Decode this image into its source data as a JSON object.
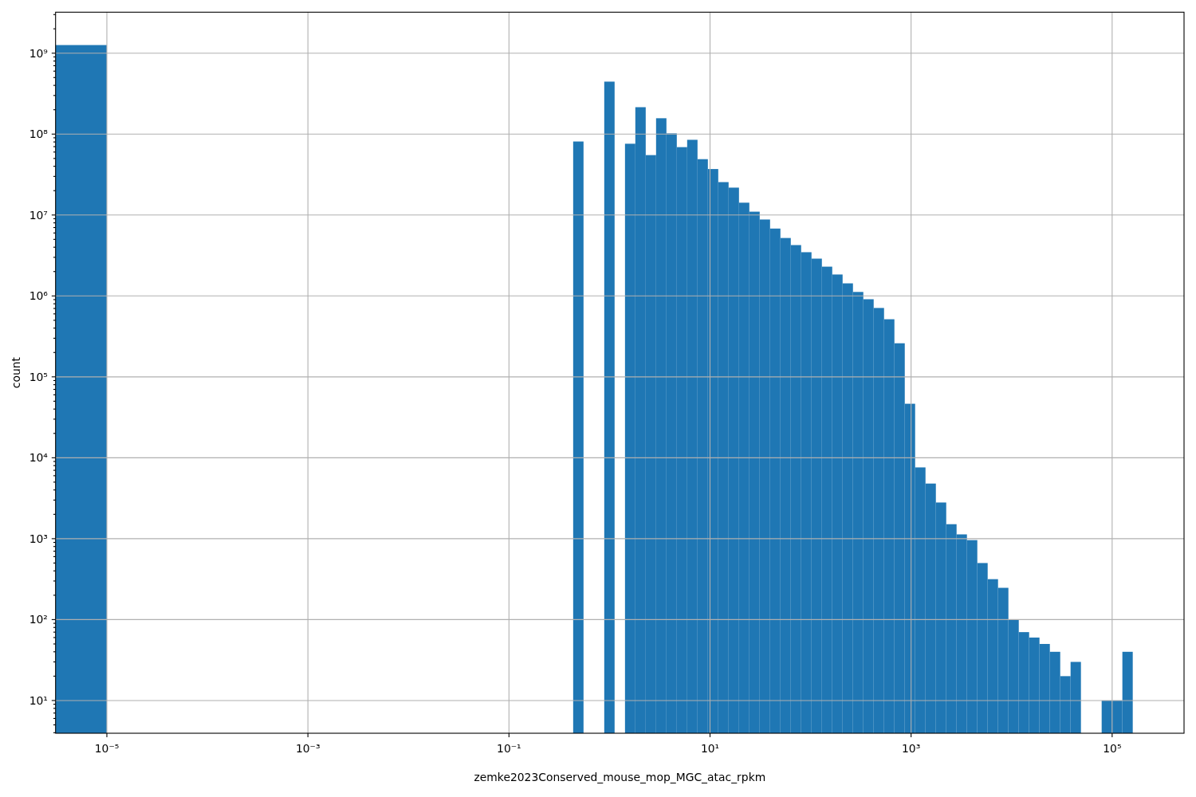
{
  "chart_data": {
    "type": "histogram",
    "xlabel": "zemke2023Conserved_mouse_mop_MGC_atac_rpkm",
    "ylabel": "count",
    "color": "#1f77b4",
    "log": "xy",
    "grid": true,
    "bins": [
      3.09e-06,
      1e-05,
      0.4351,
      0.5516,
      0.8867,
      1.124,
      1.426,
      1.807,
      2.292,
      2.906,
      3.684,
      4.671,
      5.922,
      7.508,
      9.519,
      12.07,
      15.3,
      19.41,
      24.6,
      31.19,
      39.55,
      50.14,
      63.57,
      80.6,
      102.2,
      129.6,
      164.3,
      208.3,
      264.1,
      334.8,
      424.5,
      538.3,
      682.4,
      865.3,
      1097,
      1391,
      1764,
      2236,
      2835,
      3594,
      4557,
      5778,
      7326,
      9290,
      11780,
      14930,
      18930,
      24010,
      30440,
      38590,
      48930,
      78660,
      99720,
      126400,
      160300
    ],
    "values": [
      1260000000.0,
      null,
      81000000.0,
      null,
      445000000.0,
      null,
      76000000.0,
      215000000.0,
      55000000.0,
      157000000.0,
      102000000.0,
      69000000.0,
      85000000.0,
      49000000.0,
      37000000.0,
      25500000.0,
      21800000.0,
      14200000.0,
      11000000.0,
      8800000.0,
      6800000.0,
      5200000.0,
      4250000.0,
      3470000.0,
      2890000.0,
      2300000.0,
      1840000.0,
      1430000.0,
      1120000.0,
      910000.0,
      710000.0,
      515000.0,
      260000.0,
      46500.0,
      7600,
      4800,
      2800,
      1510,
      1130,
      960,
      500,
      316,
      247,
      100,
      70,
      60,
      50,
      40,
      20,
      30,
      null,
      10,
      10,
      40
    ],
    "xlim": [
      3.09e-06,
      519000.0
    ],
    "ylim": [
      3.94,
      3210000000.0
    ],
    "xticks": [
      {
        "value": 1e-05,
        "label": "10⁻⁵"
      },
      {
        "value": 0.001,
        "label": "10⁻³"
      },
      {
        "value": 0.1,
        "label": "10⁻¹"
      },
      {
        "value": 10,
        "label": "10¹"
      },
      {
        "value": 1000,
        "label": "10³"
      },
      {
        "value": 100000,
        "label": "10⁵"
      }
    ],
    "yticks": [
      {
        "value": 4,
        "label": null
      },
      {
        "value": 5,
        "label": null
      },
      {
        "value": 6,
        "label": null
      },
      {
        "value": 7,
        "label": null
      },
      {
        "value": 8,
        "label": null
      },
      {
        "value": 9,
        "label": null
      },
      {
        "value": 10,
        "label": "10¹"
      },
      {
        "value": 20,
        "label": null
      },
      {
        "value": 30,
        "label": null
      },
      {
        "value": 40,
        "label": null
      },
      {
        "value": 50,
        "label": null
      },
      {
        "value": 60,
        "label": null
      },
      {
        "value": 70,
        "label": null
      },
      {
        "value": 80,
        "label": null
      },
      {
        "value": 90,
        "label": null
      },
      {
        "value": 100,
        "label": "10²"
      },
      {
        "value": 200,
        "label": null
      },
      {
        "value": 300,
        "label": null
      },
      {
        "value": 400,
        "label": null
      },
      {
        "value": 500,
        "label": null
      },
      {
        "value": 600,
        "label": null
      },
      {
        "value": 700,
        "label": null
      },
      {
        "value": 800,
        "label": null
      },
      {
        "value": 900,
        "label": null
      },
      {
        "value": 1000,
        "label": "10³"
      },
      {
        "value": 2000,
        "label": null
      },
      {
        "value": 3000,
        "label": null
      },
      {
        "value": 4000,
        "label": null
      },
      {
        "value": 5000,
        "label": null
      },
      {
        "value": 6000,
        "label": null
      },
      {
        "value": 7000,
        "label": null
      },
      {
        "value": 8000,
        "label": null
      },
      {
        "value": 9000,
        "label": null
      },
      {
        "value": 10000.0,
        "label": "10⁴"
      },
      {
        "value": 20000.0,
        "label": null
      },
      {
        "value": 30000.0,
        "label": null
      },
      {
        "value": 40000.0,
        "label": null
      },
      {
        "value": 50000.0,
        "label": null
      },
      {
        "value": 60000.0,
        "label": null
      },
      {
        "value": 70000.0,
        "label": null
      },
      {
        "value": 80000.0,
        "label": null
      },
      {
        "value": 90000.0,
        "label": null
      },
      {
        "value": 100000.0,
        "label": "10⁵"
      },
      {
        "value": 200000.0,
        "label": null
      },
      {
        "value": 300000.0,
        "label": null
      },
      {
        "value": 400000.0,
        "label": null
      },
      {
        "value": 500000.0,
        "label": null
      },
      {
        "value": 600000.0,
        "label": null
      },
      {
        "value": 700000.0,
        "label": null
      },
      {
        "value": 800000.0,
        "label": null
      },
      {
        "value": 900000.0,
        "label": null
      },
      {
        "value": 1000000.0,
        "label": "10⁶"
      },
      {
        "value": 2000000.0,
        "label": null
      },
      {
        "value": 3000000.0,
        "label": null
      },
      {
        "value": 4000000.0,
        "label": null
      },
      {
        "value": 5000000.0,
        "label": null
      },
      {
        "value": 6000000.0,
        "label": null
      },
      {
        "value": 7000000.0,
        "label": null
      },
      {
        "value": 8000000.0,
        "label": null
      },
      {
        "value": 9000000.0,
        "label": null
      },
      {
        "value": 10000000.0,
        "label": "10⁷"
      },
      {
        "value": 20000000.0,
        "label": null
      },
      {
        "value": 30000000.0,
        "label": null
      },
      {
        "value": 40000000.0,
        "label": null
      },
      {
        "value": 50000000.0,
        "label": null
      },
      {
        "value": 60000000.0,
        "label": null
      },
      {
        "value": 70000000.0,
        "label": null
      },
      {
        "value": 80000000.0,
        "label": null
      },
      {
        "value": 90000000.0,
        "label": null
      },
      {
        "value": 100000000.0,
        "label": "10⁸"
      },
      {
        "value": 200000000.0,
        "label": null
      },
      {
        "value": 300000000.0,
        "label": null
      },
      {
        "value": 400000000.0,
        "label": null
      },
      {
        "value": 500000000.0,
        "label": null
      },
      {
        "value": 600000000.0,
        "label": null
      },
      {
        "value": 700000000.0,
        "label": null
      },
      {
        "value": 800000000.0,
        "label": null
      },
      {
        "value": 900000000.0,
        "label": null
      },
      {
        "value": 1000000000.0,
        "label": "10⁹"
      },
      {
        "value": 2000000000.0,
        "label": null
      },
      {
        "value": 3000000000.0,
        "label": null
      }
    ]
  }
}
